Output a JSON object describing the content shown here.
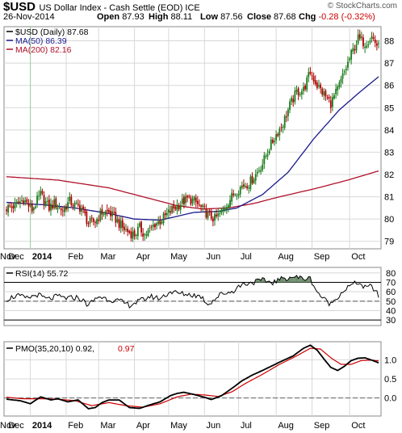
{
  "header": {
    "ticker": "$USD",
    "index_name": "US Dollar Index - Cash Settle (EOD) ICE",
    "copyright": "© StockCharts.com",
    "date": "26-Nov-2014",
    "open_label": "Open",
    "open_value": "87.93",
    "high_label": "High",
    "high_value": "88.11",
    "low_label": "Low",
    "low_value": "87.56",
    "close_label": "Close",
    "close_value": "87.68",
    "chg_label": "Chg",
    "chg_value": "-0.28 (-0.32%)"
  },
  "colors": {
    "up": "#1a7a1a",
    "down": "#b00000",
    "ma50": "#1a1a8c",
    "ma200": "#b0102a",
    "rsi_fill": "#6f8f6f",
    "pmo_signal": "#cc0000",
    "grid": "#d8d8d8"
  },
  "chart_data": [
    {
      "type": "candlestick",
      "legend": [
        {
          "text": "$USD (Daily) 87.68",
          "color": "#000000"
        },
        {
          "text": "MA(50) 86.39",
          "color": "#1a1a8c"
        },
        {
          "text": "MA(200) 82.16",
          "color": "#b0102a"
        }
      ],
      "x_tick_labels": [
        "Dec",
        "2014",
        "Feb",
        "Mar",
        "Apr",
        "May",
        "Jun",
        "Jul",
        "Aug",
        "Sep",
        "Oct",
        "Nov"
      ],
      "y_ticks": [
        79,
        80,
        81,
        82,
        83,
        84,
        85,
        86,
        87,
        88
      ],
      "ylim": [
        78.7,
        88.6
      ],
      "close_anchors": [
        [
          0,
          80.5
        ],
        [
          5,
          80.6
        ],
        [
          10,
          80.9
        ],
        [
          15,
          80.4
        ],
        [
          20,
          81.1
        ],
        [
          25,
          80.5
        ],
        [
          28,
          80.7
        ],
        [
          33,
          80.4
        ],
        [
          37,
          80.8
        ],
        [
          40,
          80.6
        ],
        [
          44,
          80.5
        ],
        [
          48,
          79.8
        ],
        [
          52,
          79.9
        ],
        [
          56,
          80.3
        ],
        [
          60,
          80.3
        ],
        [
          64,
          80.0
        ],
        [
          68,
          79.6
        ],
        [
          72,
          79.4
        ],
        [
          75,
          79.3
        ],
        [
          78,
          79.6
        ],
        [
          81,
          79.3
        ],
        [
          84,
          79.5
        ],
        [
          87,
          79.8
        ],
        [
          90,
          79.9
        ],
        [
          94,
          80.2
        ],
        [
          98,
          80.5
        ],
        [
          102,
          80.7
        ],
        [
          106,
          80.9
        ],
        [
          110,
          80.8
        ],
        [
          114,
          80.5
        ],
        [
          118,
          80.2
        ],
        [
          122,
          80.0
        ],
        [
          126,
          80.3
        ],
        [
          130,
          80.8
        ],
        [
          134,
          81.2
        ],
        [
          138,
          81.5
        ],
        [
          142,
          81.6
        ],
        [
          146,
          82.0
        ],
        [
          150,
          82.5
        ],
        [
          154,
          83.2
        ],
        [
          158,
          83.8
        ],
        [
          162,
          84.3
        ],
        [
          166,
          85.1
        ],
        [
          170,
          85.7
        ],
        [
          174,
          85.8
        ],
        [
          178,
          86.6
        ],
        [
          182,
          86.0
        ],
        [
          186,
          85.6
        ],
        [
          190,
          85.2
        ],
        [
          194,
          85.8
        ],
        [
          198,
          86.6
        ],
        [
          202,
          87.4
        ],
        [
          206,
          88.1
        ],
        [
          210,
          87.9
        ],
        [
          214,
          88.2
        ],
        [
          218,
          87.7
        ]
      ],
      "ma50_anchors": [
        [
          0,
          80.75
        ],
        [
          20,
          80.65
        ],
        [
          40,
          80.5
        ],
        [
          60,
          80.25
        ],
        [
          75,
          80.0
        ],
        [
          90,
          79.95
        ],
        [
          110,
          80.3
        ],
        [
          125,
          80.35
        ],
        [
          135,
          80.5
        ],
        [
          150,
          81.1
        ],
        [
          165,
          82.1
        ],
        [
          180,
          83.6
        ],
        [
          195,
          84.9
        ],
        [
          207,
          85.7
        ],
        [
          218,
          86.39
        ]
      ],
      "ma200_anchors": [
        [
          0,
          81.9
        ],
        [
          30,
          81.75
        ],
        [
          60,
          81.4
        ],
        [
          80,
          81.0
        ],
        [
          100,
          80.6
        ],
        [
          115,
          80.45
        ],
        [
          130,
          80.5
        ],
        [
          145,
          80.7
        ],
        [
          160,
          81.0
        ],
        [
          180,
          81.35
        ],
        [
          200,
          81.75
        ],
        [
          218,
          82.16
        ]
      ]
    },
    {
      "type": "line",
      "legend": [
        {
          "text": "RSI(14) 55.72",
          "color": "#000000"
        }
      ],
      "y_ticks": [
        30,
        40,
        50,
        60,
        70,
        80
      ],
      "reference_lines": [
        30,
        70
      ],
      "ylim": [
        25,
        85
      ],
      "anchors": [
        [
          0,
          52
        ],
        [
          6,
          56
        ],
        [
          12,
          53
        ],
        [
          18,
          57
        ],
        [
          24,
          52
        ],
        [
          30,
          55
        ],
        [
          36,
          53
        ],
        [
          42,
          54
        ],
        [
          48,
          46
        ],
        [
          54,
          55
        ],
        [
          60,
          52
        ],
        [
          66,
          50
        ],
        [
          72,
          46
        ],
        [
          78,
          50
        ],
        [
          84,
          55
        ],
        [
          90,
          53
        ],
        [
          96,
          60
        ],
        [
          102,
          58
        ],
        [
          108,
          57
        ],
        [
          114,
          55
        ],
        [
          118,
          47
        ],
        [
          122,
          52
        ],
        [
          126,
          58
        ],
        [
          132,
          60
        ],
        [
          138,
          68
        ],
        [
          144,
          70
        ],
        [
          150,
          72
        ],
        [
          156,
          70
        ],
        [
          162,
          74
        ],
        [
          168,
          76
        ],
        [
          174,
          74
        ],
        [
          178,
          74
        ],
        [
          182,
          60
        ],
        [
          186,
          52
        ],
        [
          190,
          47
        ],
        [
          194,
          55
        ],
        [
          198,
          62
        ],
        [
          202,
          67
        ],
        [
          206,
          70
        ],
        [
          210,
          64
        ],
        [
          214,
          66
        ],
        [
          218,
          55.72
        ]
      ]
    },
    {
      "type": "line",
      "legend": [
        {
          "text": "PMO(35,20,10) 0.92,",
          "color": "#000000"
        },
        {
          "text": "0.97",
          "color": "#cc0000"
        }
      ],
      "x_tick_labels": [
        "Dec",
        "2014",
        "Feb",
        "Mar",
        "Apr",
        "May",
        "Jun",
        "Jul",
        "Aug",
        "Sep",
        "Oct",
        "Nov"
      ],
      "y_ticks": [
        0.0,
        0.5,
        1.0
      ],
      "reference_lines": [
        0.0
      ],
      "ylim": [
        -0.45,
        1.45
      ],
      "series": [
        {
          "anchors": [
            [
              0,
              -0.03
            ],
            [
              8,
              -0.07
            ],
            [
              14,
              -0.15
            ],
            [
              20,
              0.03
            ],
            [
              26,
              -0.05
            ],
            [
              30,
              -0.02
            ],
            [
              36,
              -0.1
            ],
            [
              42,
              -0.05
            ],
            [
              48,
              -0.28
            ],
            [
              52,
              -0.25
            ],
            [
              56,
              -0.12
            ],
            [
              60,
              -0.05
            ],
            [
              66,
              -0.05
            ],
            [
              72,
              -0.25
            ],
            [
              78,
              -0.27
            ],
            [
              84,
              -0.18
            ],
            [
              90,
              -0.1
            ],
            [
              96,
              0.06
            ],
            [
              100,
              0.12
            ],
            [
              104,
              0.15
            ],
            [
              110,
              0.09
            ],
            [
              116,
              0.02
            ],
            [
              120,
              -0.04
            ],
            [
              126,
              0.06
            ],
            [
              132,
              0.25
            ],
            [
              138,
              0.45
            ],
            [
              144,
              0.6
            ],
            [
              150,
              0.72
            ],
            [
              156,
              0.85
            ],
            [
              162,
              0.98
            ],
            [
              168,
              1.1
            ],
            [
              174,
              1.3
            ],
            [
              178,
              1.38
            ],
            [
              182,
              1.25
            ],
            [
              186,
              1.02
            ],
            [
              190,
              0.8
            ],
            [
              194,
              0.72
            ],
            [
              198,
              0.83
            ],
            [
              202,
              0.98
            ],
            [
              206,
              1.04
            ],
            [
              210,
              1.05
            ],
            [
              214,
              0.99
            ],
            [
              218,
              0.92
            ]
          ]
        },
        {
          "anchors": [
            [
              0,
              0.02
            ],
            [
              10,
              -0.02
            ],
            [
              20,
              -0.02
            ],
            [
              30,
              -0.03
            ],
            [
              40,
              -0.07
            ],
            [
              50,
              -0.2
            ],
            [
              60,
              -0.12
            ],
            [
              70,
              -0.2
            ],
            [
              80,
              -0.24
            ],
            [
              90,
              -0.15
            ],
            [
              100,
              0.03
            ],
            [
              108,
              0.1
            ],
            [
              116,
              0.08
            ],
            [
              124,
              0.04
            ],
            [
              132,
              0.16
            ],
            [
              140,
              0.38
            ],
            [
              150,
              0.62
            ],
            [
              160,
              0.88
            ],
            [
              170,
              1.1
            ],
            [
              178,
              1.3
            ],
            [
              184,
              1.28
            ],
            [
              190,
              1.05
            ],
            [
              196,
              0.88
            ],
            [
              202,
              0.88
            ],
            [
              208,
              0.98
            ],
            [
              214,
              0.99
            ],
            [
              218,
              0.97
            ]
          ]
        }
      ]
    }
  ]
}
